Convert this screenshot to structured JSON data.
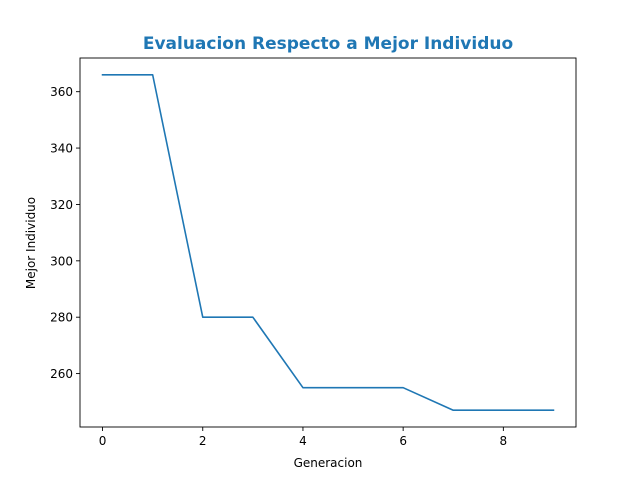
{
  "chart_data": {
    "type": "line",
    "title": "Evaluacion Respecto a Mejor Individuo",
    "xlabel": "Generacion",
    "ylabel": "Mejor Individuo",
    "x": [
      0,
      1,
      2,
      3,
      4,
      5,
      6,
      7,
      8,
      9
    ],
    "series": [
      {
        "values": [
          366,
          366,
          280,
          280,
          255,
          255,
          255,
          247,
          247,
          247
        ]
      }
    ],
    "xlim": [
      -0.45,
      9.45
    ],
    "ylim": [
      241.05,
      371.95
    ],
    "xticks": [
      0,
      2,
      4,
      6,
      8
    ],
    "yticks": [
      260,
      280,
      300,
      320,
      340,
      360
    ],
    "grid": false,
    "colors": {
      "title": "#1f77b4",
      "line": "#1f77b4",
      "axes": "#000000"
    }
  }
}
